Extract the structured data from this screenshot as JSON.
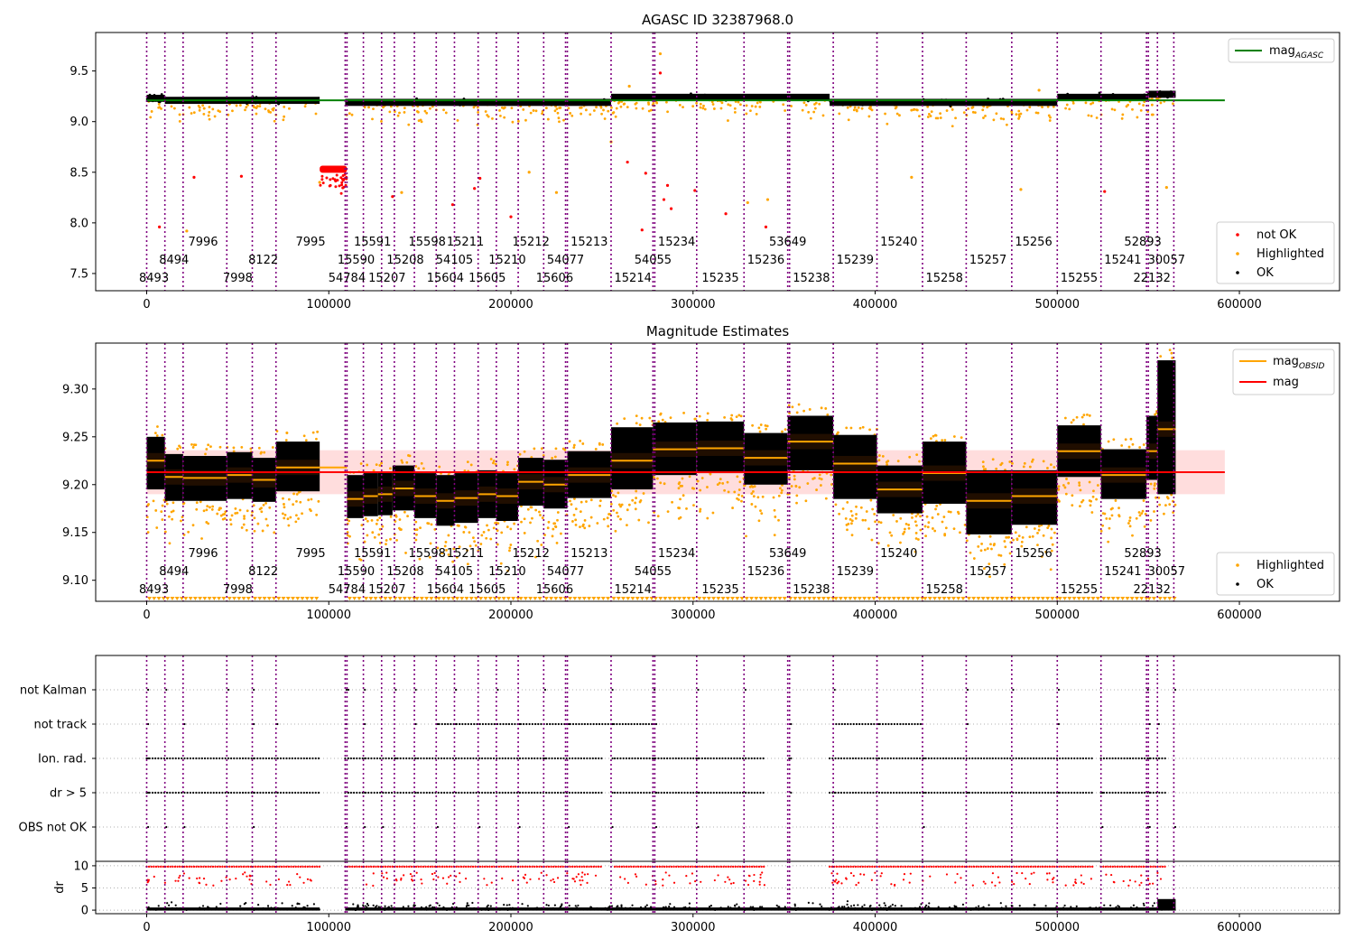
{
  "chart_data": [
    {
      "type": "scatter",
      "title": "AGASC ID 32387968.0",
      "xlim": [
        -28000,
        655000
      ],
      "ylim": [
        7.33,
        9.88
      ],
      "xticks": [
        0,
        100000,
        200000,
        300000,
        400000,
        500000,
        600000
      ],
      "yticks": [
        7.5,
        8.0,
        8.5,
        9.0,
        9.5
      ],
      "ytick_labels": [
        "7.5",
        "8.0",
        "8.5",
        "9.0",
        "9.5"
      ],
      "mag_agasc": 9.21,
      "mag_agasc_xrange": [
        0,
        592000
      ],
      "series": [
        {
          "name": "not OK",
          "color": "#ff0000"
        },
        {
          "name": "Highlighted",
          "color": "#ffa500"
        },
        {
          "name": "OK",
          "color": "#000000"
        }
      ],
      "line_legend": [
        {
          "label": "mag",
          "sub": "AGASC",
          "color": "#008000"
        }
      ],
      "ok_segments": [
        {
          "x0": 0,
          "x1": 10000,
          "y": 9.23
        },
        {
          "x0": 10000,
          "x1": 95000,
          "y": 9.21
        },
        {
          "x0": 109000,
          "x1": 255000,
          "y": 9.19
        },
        {
          "x0": 255000,
          "x1": 375000,
          "y": 9.24
        },
        {
          "x0": 375000,
          "x1": 500000,
          "y": 9.19
        },
        {
          "x0": 500000,
          "x1": 550000,
          "y": 9.24
        },
        {
          "x0": 550000,
          "x1": 565000,
          "y": 9.27
        }
      ],
      "not_ok_cluster": {
        "x0": 95000,
        "x1": 110000,
        "y": 8.53
      },
      "not_ok_points": [
        [
          7000,
          7.96
        ],
        [
          26000,
          8.45
        ],
        [
          52000,
          8.46
        ],
        [
          135000,
          8.26
        ],
        [
          168000,
          8.18
        ],
        [
          180000,
          8.34
        ],
        [
          183000,
          8.44
        ],
        [
          200000,
          8.06
        ],
        [
          264000,
          8.6
        ],
        [
          272000,
          7.93
        ],
        [
          274000,
          8.49
        ],
        [
          282000,
          9.48
        ],
        [
          284000,
          8.23
        ],
        [
          286000,
          8.37
        ],
        [
          288000,
          8.14
        ],
        [
          301000,
          8.32
        ],
        [
          318000,
          8.09
        ],
        [
          340000,
          7.96
        ],
        [
          526000,
          8.31
        ]
      ],
      "highlighted_points": [
        [
          22000,
          7.92
        ],
        [
          282000,
          9.67
        ],
        [
          265000,
          9.35
        ],
        [
          490000,
          9.31
        ],
        [
          95000,
          8.4
        ],
        [
          140000,
          8.3
        ],
        [
          210000,
          8.5
        ],
        [
          330000,
          8.2
        ],
        [
          420000,
          8.45
        ],
        [
          560000,
          8.35
        ],
        [
          480000,
          8.33
        ],
        [
          341000,
          8.23
        ],
        [
          255000,
          8.8
        ],
        [
          225000,
          8.3
        ]
      ]
    },
    {
      "type": "scatter",
      "title": "Magnitude Estimates",
      "xlim": [
        -28000,
        655000
      ],
      "ylim": [
        9.078,
        9.348
      ],
      "xticks": [
        0,
        100000,
        200000,
        300000,
        400000,
        500000,
        600000
      ],
      "yticks": [
        9.1,
        9.15,
        9.2,
        9.25,
        9.3
      ],
      "ytick_labels": [
        "9.10",
        "9.15",
        "9.20",
        "9.25",
        "9.30"
      ],
      "mag": 9.213,
      "mag_band": [
        9.19,
        9.236
      ],
      "mag_xrange": [
        0,
        592000
      ],
      "series": [
        {
          "name": "Highlighted",
          "color": "#ffa500"
        },
        {
          "name": "OK",
          "color": "#000000"
        }
      ],
      "line_legend": [
        {
          "label": "mag",
          "sub": "OBSID",
          "color": "#ffa500"
        },
        {
          "label": "mag",
          "sub": "",
          "color": "#ff0000"
        }
      ],
      "obsid_mags": [
        {
          "x0": 0,
          "x1": 10000,
          "mag": 9.225,
          "lo": 9.195,
          "hi": 9.25
        },
        {
          "x0": 10000,
          "x1": 20000,
          "mag": 9.208,
          "lo": 9.183,
          "hi": 9.232
        },
        {
          "x0": 20000,
          "x1": 44000,
          "mag": 9.207,
          "lo": 9.183,
          "hi": 9.23
        },
        {
          "x0": 44000,
          "x1": 58000,
          "mag": 9.21,
          "lo": 9.185,
          "hi": 9.234
        },
        {
          "x0": 58000,
          "x1": 71000,
          "mag": 9.205,
          "lo": 9.182,
          "hi": 9.228
        },
        {
          "x0": 71000,
          "x1": 95000,
          "mag": 9.218,
          "lo": 9.193,
          "hi": 9.245
        },
        {
          "x0": 95000,
          "x1": 110000,
          "mag": 9.218,
          "lo": 9.218,
          "hi": 9.218
        },
        {
          "x0": 110000,
          "x1": 119000,
          "mag": 9.185,
          "lo": 9.165,
          "hi": 9.21
        },
        {
          "x0": 119000,
          "x1": 127000,
          "mag": 9.188,
          "lo": 9.167,
          "hi": 9.212
        },
        {
          "x0": 127000,
          "x1": 135000,
          "mag": 9.19,
          "lo": 9.168,
          "hi": 9.213
        },
        {
          "x0": 135000,
          "x1": 147000,
          "mag": 9.196,
          "lo": 9.173,
          "hi": 9.22
        },
        {
          "x0": 147000,
          "x1": 159000,
          "mag": 9.188,
          "lo": 9.165,
          "hi": 9.212
        },
        {
          "x0": 159000,
          "x1": 169000,
          "mag": 9.183,
          "lo": 9.157,
          "hi": 9.21
        },
        {
          "x0": 169000,
          "x1": 182000,
          "mag": 9.186,
          "lo": 9.16,
          "hi": 9.212
        },
        {
          "x0": 182000,
          "x1": 192000,
          "mag": 9.19,
          "lo": 9.165,
          "hi": 9.215
        },
        {
          "x0": 192000,
          "x1": 204000,
          "mag": 9.188,
          "lo": 9.162,
          "hi": 9.212
        },
        {
          "x0": 204000,
          "x1": 218000,
          "mag": 9.203,
          "lo": 9.178,
          "hi": 9.228
        },
        {
          "x0": 218000,
          "x1": 231000,
          "mag": 9.2,
          "lo": 9.175,
          "hi": 9.226
        },
        {
          "x0": 231000,
          "x1": 255000,
          "mag": 9.21,
          "lo": 9.186,
          "hi": 9.235
        },
        {
          "x0": 255000,
          "x1": 278000,
          "mag": 9.225,
          "lo": 9.195,
          "hi": 9.26
        },
        {
          "x0": 278000,
          "x1": 302000,
          "mag": 9.237,
          "lo": 9.21,
          "hi": 9.265
        },
        {
          "x0": 302000,
          "x1": 328000,
          "mag": 9.238,
          "lo": 9.212,
          "hi": 9.266
        },
        {
          "x0": 328000,
          "x1": 352000,
          "mag": 9.228,
          "lo": 9.2,
          "hi": 9.254
        },
        {
          "x0": 352000,
          "x1": 377000,
          "mag": 9.245,
          "lo": 9.215,
          "hi": 9.272
        },
        {
          "x0": 377000,
          "x1": 401000,
          "mag": 9.222,
          "lo": 9.185,
          "hi": 9.252
        },
        {
          "x0": 401000,
          "x1": 426000,
          "mag": 9.195,
          "lo": 9.17,
          "hi": 9.22
        },
        {
          "x0": 426000,
          "x1": 450000,
          "mag": 9.212,
          "lo": 9.18,
          "hi": 9.245
        },
        {
          "x0": 450000,
          "x1": 475000,
          "mag": 9.183,
          "lo": 9.148,
          "hi": 9.215
        },
        {
          "x0": 475000,
          "x1": 500000,
          "mag": 9.188,
          "lo": 9.158,
          "hi": 9.215
        },
        {
          "x0": 500000,
          "x1": 524000,
          "mag": 9.235,
          "lo": 9.208,
          "hi": 9.262
        },
        {
          "x0": 524000,
          "x1": 549000,
          "mag": 9.21,
          "lo": 9.185,
          "hi": 9.237
        },
        {
          "x0": 549000,
          "x1": 555000,
          "mag": 9.235,
          "lo": 9.205,
          "hi": 9.272
        },
        {
          "x0": 555000,
          "x1": 565000,
          "mag": 9.258,
          "lo": 9.19,
          "hi": 9.33
        }
      ]
    },
    {
      "type": "scatter",
      "title": "",
      "xlim": [
        -28000,
        655000
      ],
      "xticks": [
        0,
        100000,
        200000,
        300000,
        400000,
        500000,
        600000
      ],
      "flag_rows": [
        "not Kalman",
        "not track",
        "Ion. rad.",
        "dr > 5",
        "OBS not OK"
      ],
      "flag_segments": {
        "not Kalman": [],
        "not track": [
          [
            159000,
            278000
          ],
          [
            377000,
            426000
          ]
        ],
        "Ion. rad.": [
          [
            0,
            95000
          ],
          [
            109000,
            250000
          ],
          [
            257000,
            340000
          ],
          [
            375000,
            520000
          ],
          [
            524000,
            560000
          ]
        ],
        "dr > 5": [
          [
            0,
            95000
          ],
          [
            109000,
            250000
          ],
          [
            257000,
            340000
          ],
          [
            375000,
            520000
          ],
          [
            524000,
            560000
          ]
        ],
        "OBS not OK": []
      }
    },
    {
      "type": "scatter",
      "title": "",
      "ylabel": "dr",
      "xlim": [
        -28000,
        655000
      ],
      "ylim": [
        -0.8,
        11
      ],
      "xticks": [
        0,
        100000,
        200000,
        300000,
        400000,
        500000,
        600000
      ],
      "xtick_labels": [
        "0",
        "100000",
        "200000",
        "300000",
        "400000",
        "500000",
        "600000"
      ],
      "yticks": [
        0,
        5,
        10
      ],
      "ytick_labels": [
        "0",
        "5",
        "10"
      ],
      "clipped_segments": [
        [
          0,
          95000
        ],
        [
          109000,
          250000
        ],
        [
          257000,
          340000
        ],
        [
          375000,
          520000
        ],
        [
          524000,
          560000
        ]
      ],
      "clip_value": 9.8
    }
  ],
  "obsid_boundaries": [
    0,
    10000,
    20000,
    44000,
    58000,
    71000,
    109000,
    110000,
    119000,
    129000,
    136000,
    147000,
    159000,
    169000,
    182000,
    192000,
    204000,
    218000,
    230000,
    231000,
    255000,
    278000,
    279000,
    302000,
    328000,
    352000,
    353000,
    377000,
    401000,
    426000,
    450000,
    475000,
    500000,
    524000,
    549000,
    550000,
    555000,
    564000
  ],
  "obsid_labels": [
    {
      "text": "8493",
      "x": 4000,
      "row": 2
    },
    {
      "text": "8494",
      "x": 15000,
      "row": 1
    },
    {
      "text": "7996",
      "x": 31000,
      "row": 0
    },
    {
      "text": "7998",
      "x": 50000,
      "row": 2
    },
    {
      "text": "8122",
      "x": 64000,
      "row": 1
    },
    {
      "text": "7995",
      "x": 90000,
      "row": 0
    },
    {
      "text": "15590",
      "x": 115000,
      "row": 1
    },
    {
      "text": "54784",
      "x": 110000,
      "row": 2
    },
    {
      "text": "15591",
      "x": 124000,
      "row": 0
    },
    {
      "text": "15207",
      "x": 132000,
      "row": 2
    },
    {
      "text": "15208",
      "x": 142000,
      "row": 1
    },
    {
      "text": "15598",
      "x": 154000,
      "row": 0
    },
    {
      "text": "15604",
      "x": 164000,
      "row": 2
    },
    {
      "text": "54105",
      "x": 169000,
      "row": 1
    },
    {
      "text": "15211",
      "x": 175000,
      "row": 0
    },
    {
      "text": "15605",
      "x": 187000,
      "row": 2
    },
    {
      "text": "15210",
      "x": 198000,
      "row": 1
    },
    {
      "text": "15212",
      "x": 211000,
      "row": 0
    },
    {
      "text": "15606",
      "x": 224000,
      "row": 2
    },
    {
      "text": "54077",
      "x": 230000,
      "row": 1
    },
    {
      "text": "15213",
      "x": 243000,
      "row": 0
    },
    {
      "text": "15214",
      "x": 267000,
      "row": 2
    },
    {
      "text": "54055",
      "x": 278000,
      "row": 1
    },
    {
      "text": "15234",
      "x": 291000,
      "row": 0
    },
    {
      "text": "15235",
      "x": 315000,
      "row": 2
    },
    {
      "text": "15236",
      "x": 340000,
      "row": 1
    },
    {
      "text": "53649",
      "x": 352000,
      "row": 0
    },
    {
      "text": "15238",
      "x": 365000,
      "row": 2
    },
    {
      "text": "15239",
      "x": 389000,
      "row": 1
    },
    {
      "text": "15240",
      "x": 413000,
      "row": 0
    },
    {
      "text": "15258",
      "x": 438000,
      "row": 2
    },
    {
      "text": "15257",
      "x": 462000,
      "row": 1
    },
    {
      "text": "15256",
      "x": 487000,
      "row": 0
    },
    {
      "text": "15255",
      "x": 512000,
      "row": 2
    },
    {
      "text": "15241",
      "x": 536000,
      "row": 1
    },
    {
      "text": "52893",
      "x": 547000,
      "row": 0
    },
    {
      "text": "22132",
      "x": 552000,
      "row": 2
    },
    {
      "text": "30057",
      "x": 560000,
      "row": 1
    }
  ],
  "colors": {
    "boundary": "#800080",
    "ok": "#000000",
    "highlighted": "#ffa500",
    "not_ok": "#ff0000",
    "mag_agasc": "#008000",
    "mag": "#ff0000",
    "mag_obsid": "#ffa500",
    "mag_band": "#ff000022",
    "grid": "#b0b0b0"
  }
}
